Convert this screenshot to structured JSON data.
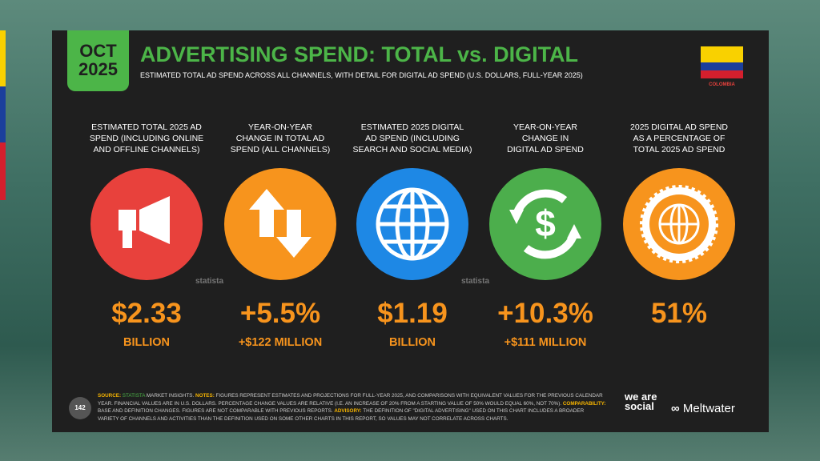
{
  "header": {
    "badge_month": "OCT",
    "badge_year": "2025",
    "title": "ADVERTISING SPEND: TOTAL vs. DIGITAL",
    "subtitle": "ESTIMATED TOTAL AD SPEND ACROSS ALL CHANNELS, WITH DETAIL FOR DIGITAL AD SPEND (U.S. DOLLARS, FULL-YEAR 2025)",
    "country": "COLOMBIA"
  },
  "columns": [
    {
      "label": [
        "ESTIMATED TOTAL 2025 AD",
        "SPEND (INCLUDING ONLINE",
        "AND OFFLINE CHANNELS)"
      ],
      "value": "$2.33",
      "unit": "BILLION"
    },
    {
      "label": [
        "YEAR-ON-YEAR",
        "CHANGE IN TOTAL AD",
        "SPEND (ALL CHANNELS)"
      ],
      "value": "+5.5%",
      "unit": "+$122 MILLION"
    },
    {
      "label": [
        "ESTIMATED 2025 DIGITAL",
        "AD SPEND (INCLUDING",
        "SEARCH AND SOCIAL MEDIA)"
      ],
      "value": "$1.19",
      "unit": "BILLION"
    },
    {
      "label": [
        "YEAR-ON-YEAR",
        "CHANGE IN",
        "DIGITAL AD SPEND"
      ],
      "value": "+10.3%",
      "unit": "+$111 MILLION"
    },
    {
      "label": [
        "2025 DIGITAL AD SPEND",
        "AS A PERCENTAGE OF",
        "TOTAL 2025 AD SPEND"
      ],
      "value": "51%",
      "unit": null
    }
  ],
  "watermarks": [
    "statista",
    "statista"
  ],
  "footer": {
    "page_number": "142",
    "source_label": "SOURCE:",
    "source_name": "STATISTA",
    "source_text": " MARKET INSIGHTS. ",
    "notes_label": "NOTES:",
    "notes_text": " FIGURES REPRESENT ESTIMATES AND PROJECTIONS FOR FULL-YEAR 2025, AND COMPARISONS WITH EQUIVALENT VALUES FOR THE PREVIOUS CALENDAR YEAR. FINANCIAL VALUES ARE IN U.S. DOLLARS. PERCENTAGE CHANGE VALUES ARE RELATIVE (I.E. AN INCREASE OF 20% FROM A STARTING VALUE OF 50% WOULD EQUAL 60%, NOT 70%). ",
    "comparability_label": "COMPARABILITY:",
    "comparability_text": " BASE AND DEFINITION CHANGES. FIGURES ARE NOT COMPARABLE WITH PREVIOUS REPORTS. ",
    "advisory_label": "ADVISORY:",
    "advisory_text": " THE DEFINITION OF \"DIGITAL ADVERTISING\" USED ON THIS CHART INCLUDES A BROADER VARIETY OF CHANNELS AND ACTIVITIES THAN THE DEFINITION USED ON SOME OTHER CHARTS IN THIS REPORT, SO VALUES MAY NOT CORRELATE ACROSS CHARTS.",
    "logo_1": "we are social",
    "logo_2": "Meltwater"
  }
}
